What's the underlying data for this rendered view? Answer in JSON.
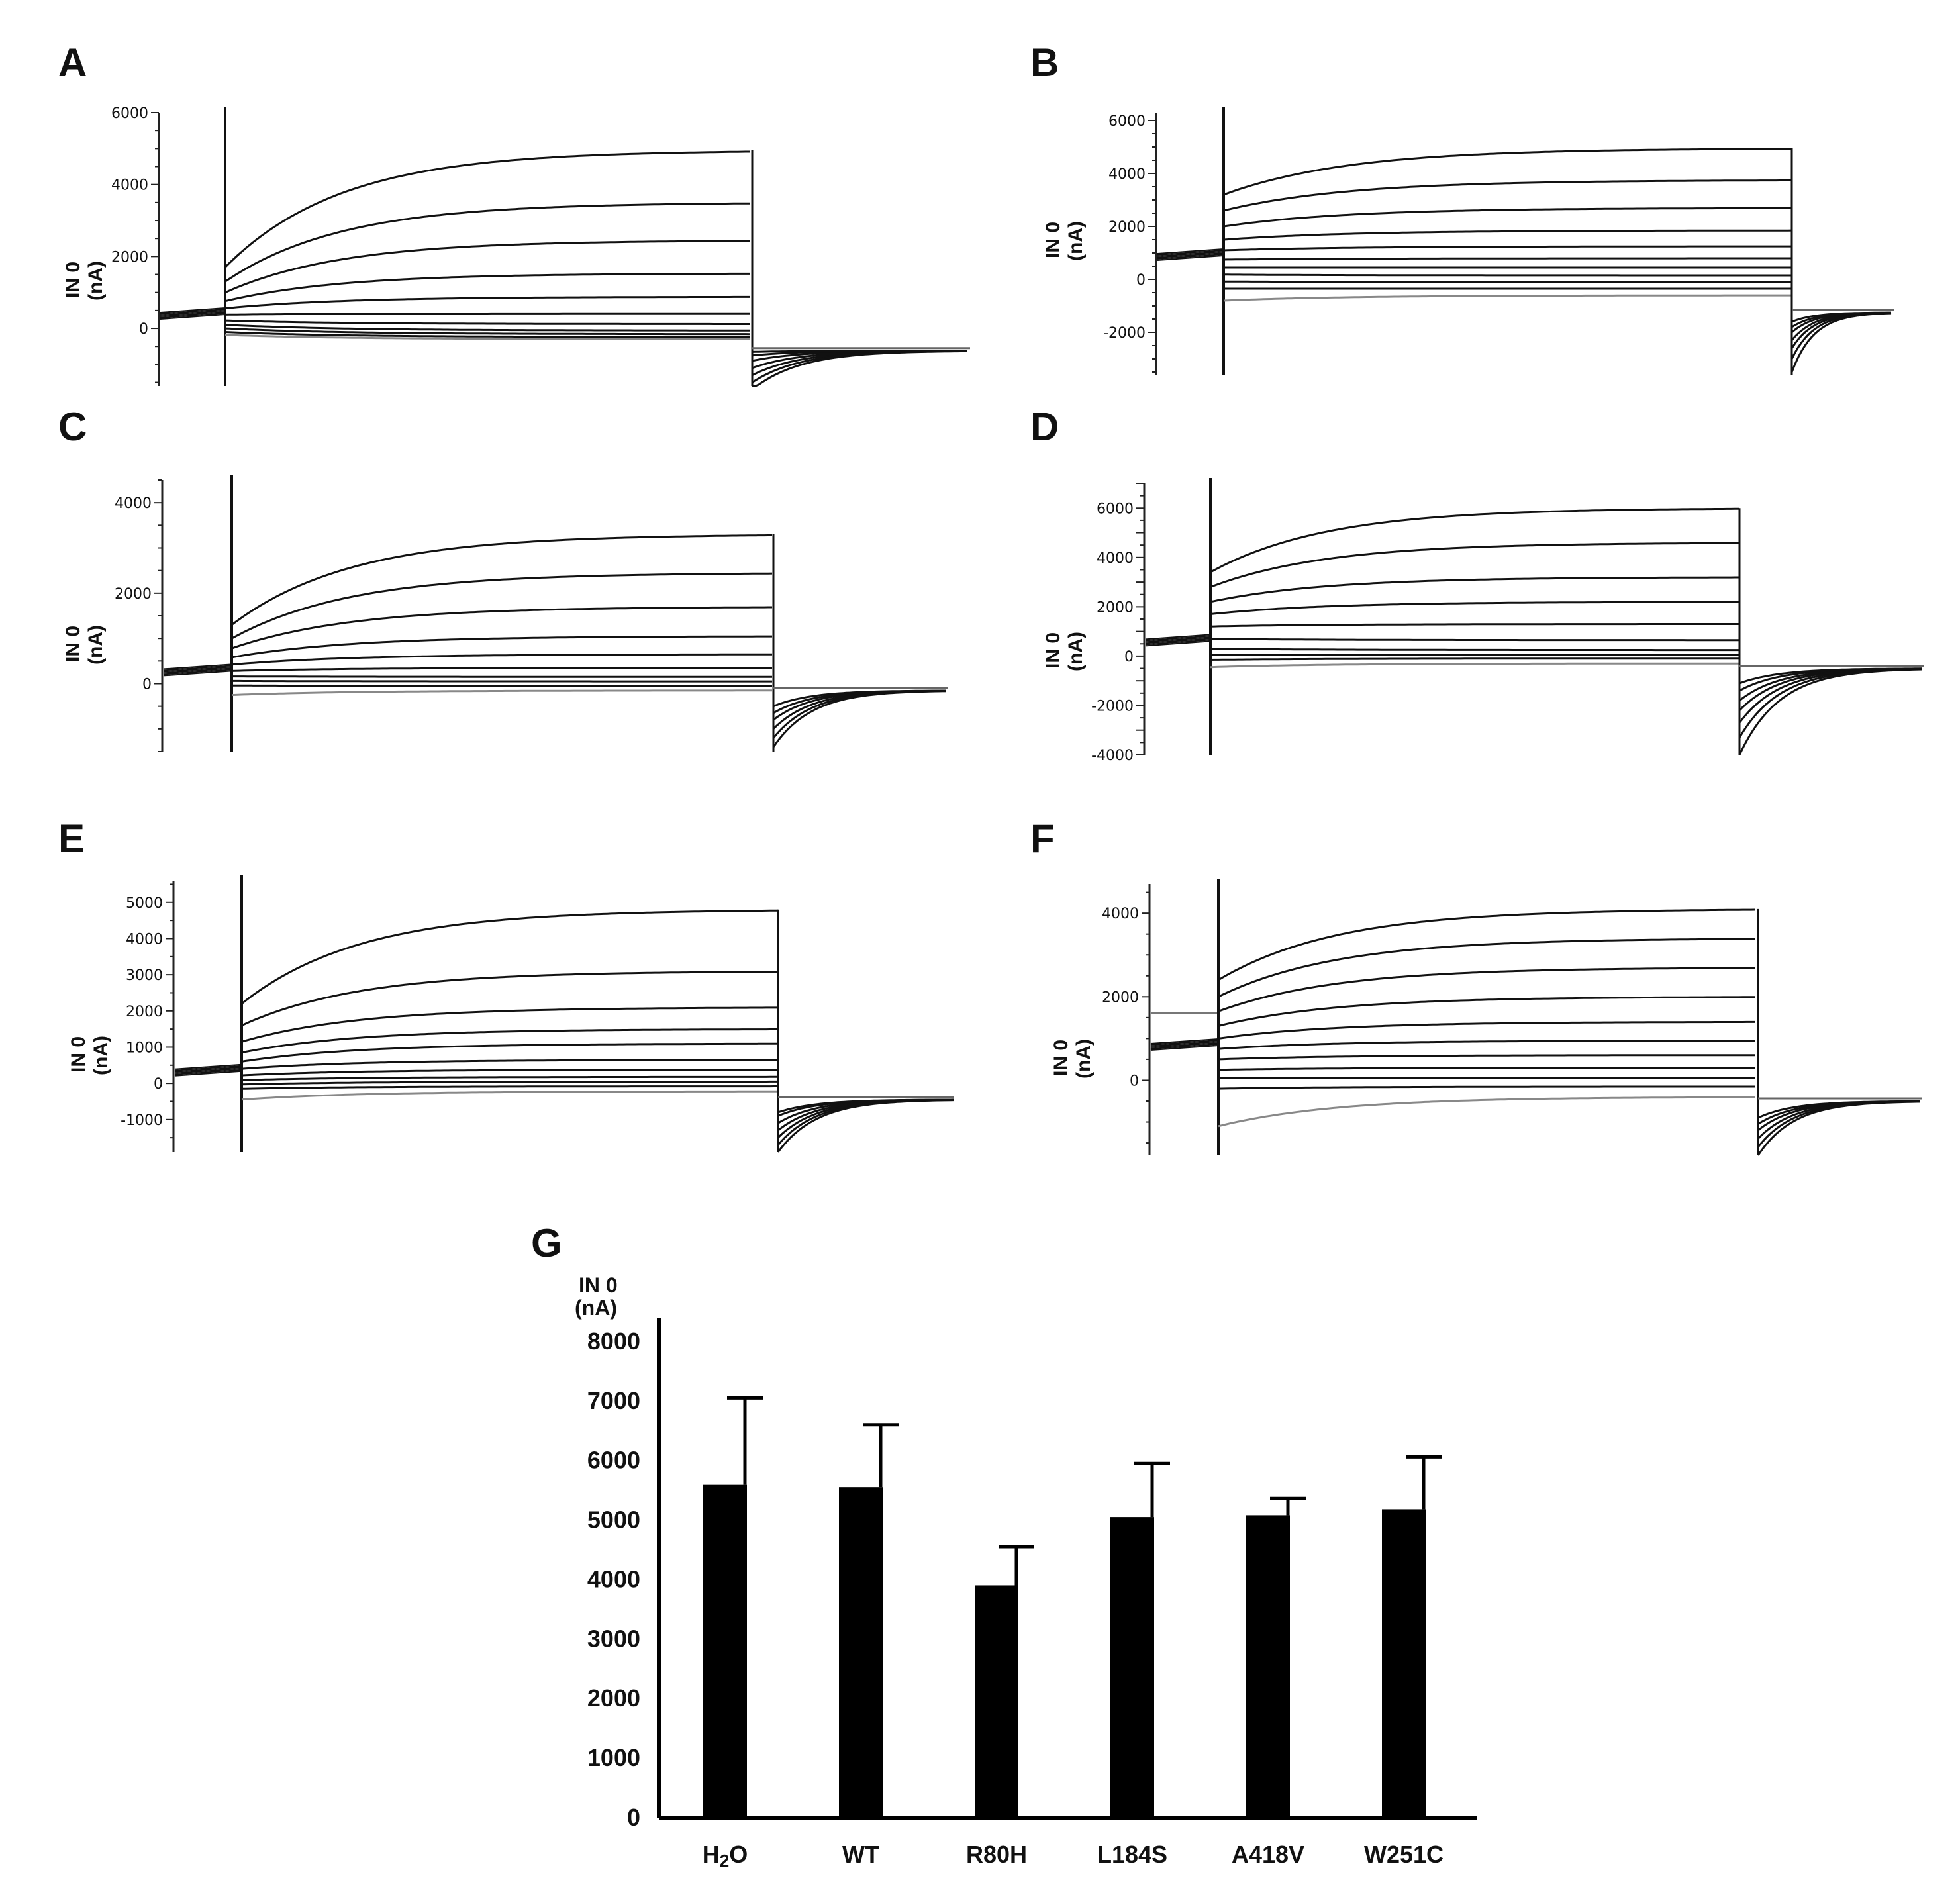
{
  "chart_data": [
    {
      "panel": "A",
      "type": "line",
      "ylabel_line1": "IN 0",
      "ylabel_line2": "(nA)",
      "yticks": [
        "6000",
        "4000",
        "2000",
        "0"
      ],
      "ylim": [
        -1600,
        6000
      ],
      "steady_state": [
        4950,
        3500,
        2450,
        1530,
        880,
        420,
        120,
        -60,
        -160,
        -240,
        -300
      ],
      "start_current": [
        1700,
        1300,
        1000,
        760,
        560,
        380,
        220,
        100,
        0,
        -100,
        -180
      ],
      "holding": 350,
      "tail_start": [
        -1700,
        -1500,
        -1300,
        -1100,
        -900,
        -750,
        -650
      ],
      "tail_end": -620
    },
    {
      "panel": "B",
      "type": "line",
      "ylabel_line1": "IN 0",
      "ylabel_line2": "(nA)",
      "yticks": [
        "6000",
        "4000",
        "2000",
        "0",
        "-2000"
      ],
      "ylim": [
        -3600,
        6300
      ],
      "steady_state": [
        4950,
        3750,
        2700,
        1850,
        1250,
        800,
        450,
        150,
        -100,
        -350,
        -600
      ],
      "start_current": [
        3200,
        2600,
        2000,
        1500,
        1100,
        750,
        450,
        180,
        -80,
        -350,
        -800
      ],
      "holding": 850,
      "tail_start": [
        -3500,
        -3000,
        -2600,
        -2300,
        -2000,
        -1800,
        -1600
      ],
      "tail_end": -1250
    },
    {
      "panel": "C",
      "type": "line",
      "ylabel_line1": "IN 0",
      "ylabel_line2": "(nA)",
      "yticks": [
        "4000",
        "2000",
        "0"
      ],
      "ylim": [
        -1500,
        4500
      ],
      "steady_state": [
        3300,
        2450,
        1700,
        1050,
        650,
        350,
        150,
        50,
        -50,
        -150
      ],
      "start_current": [
        1300,
        1000,
        780,
        580,
        420,
        280,
        160,
        60,
        -40,
        -250
      ],
      "holding": 250,
      "tail_start": [
        -1400,
        -1200,
        -1000,
        -800,
        -650,
        -500
      ],
      "tail_end": -150
    },
    {
      "panel": "D",
      "type": "line",
      "ylabel_line1": "IN 0",
      "ylabel_line2": "(nA)",
      "yticks": [
        "6000",
        "4000",
        "2000",
        "0",
        "-2000",
        "-4000"
      ],
      "ylim": [
        -4000,
        7000
      ],
      "steady_state": [
        6000,
        4600,
        3200,
        2200,
        1300,
        650,
        250,
        50,
        -100,
        -300
      ],
      "start_current": [
        3400,
        2800,
        2200,
        1700,
        1200,
        700,
        300,
        50,
        -150,
        -450
      ],
      "holding": 550,
      "tail_start": [
        -4000,
        -3300,
        -2700,
        -2200,
        -1800,
        -1400,
        -1100
      ],
      "tail_end": -500
    },
    {
      "panel": "E",
      "type": "line",
      "ylabel_line1": "IN 0",
      "ylabel_line2": "(nA)",
      "yticks": [
        "5000",
        "4000",
        "3000",
        "2000",
        "1000",
        "0",
        "-1000"
      ],
      "ylim": [
        -1900,
        5600
      ],
      "steady_state": [
        4800,
        3100,
        2100,
        1500,
        1100,
        650,
        380,
        180,
        50,
        -80,
        -220
      ],
      "start_current": [
        2200,
        1600,
        1150,
        850,
        600,
        400,
        220,
        90,
        -30,
        -150,
        -450
      ],
      "holding": 300,
      "tail_start": [
        -1900,
        -1700,
        -1500,
        -1300,
        -1100,
        -900,
        -800
      ],
      "tail_end": -450
    },
    {
      "panel": "F",
      "type": "line",
      "ylabel_line1": "IN 0",
      "ylabel_line2": "(nA)",
      "yticks": [
        "4000",
        "2000",
        "0"
      ],
      "ylim": [
        -1800,
        4700
      ],
      "steady_state": [
        4100,
        3400,
        2700,
        2000,
        1400,
        950,
        600,
        300,
        50,
        -150,
        -400
      ],
      "start_current": [
        2400,
        2000,
        1650,
        1300,
        1000,
        750,
        500,
        250,
        50,
        -200,
        -1100
      ],
      "holding": 800,
      "holding_gray": 1600,
      "tail_start": [
        -1800,
        -1600,
        -1400,
        -1200,
        -1050,
        -900
      ],
      "tail_end": -500
    },
    {
      "panel": "G",
      "type": "bar",
      "ylabel_line1": "IN 0",
      "ylabel_line2": "(nA)",
      "categories": [
        "H2O",
        "WT",
        "R80H",
        "L184S",
        "A418V",
        "W251C"
      ],
      "values": [
        5600,
        5550,
        3900,
        5050,
        5080,
        5180
      ],
      "error": [
        1450,
        1050,
        650,
        900,
        280,
        880
      ],
      "yticks": [
        "8000",
        "7000",
        "6000",
        "5000",
        "4000",
        "3000",
        "2000",
        "1000",
        "0"
      ],
      "ylim": [
        0,
        8400
      ]
    }
  ]
}
